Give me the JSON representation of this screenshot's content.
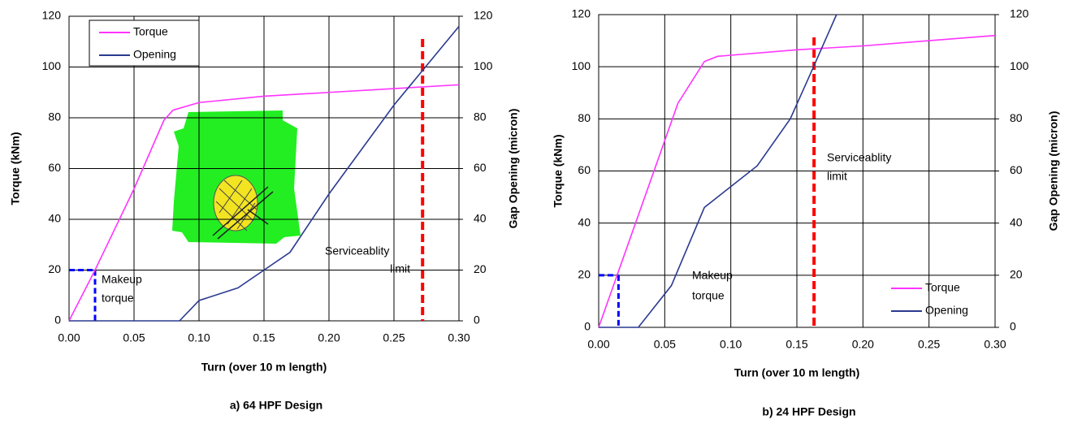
{
  "chart_data": [
    {
      "type": "line",
      "title": "a) 64 HPF Design",
      "xlabel": "Turn (over 10 m length)",
      "ylabel": "Torque (kNm)",
      "y2label": "Gap Opening (micron)",
      "xlim": [
        0,
        0.3
      ],
      "xticks": [
        {
          "value": 0,
          "label": "0.00"
        },
        {
          "value": 0.05,
          "label": "0.05"
        },
        {
          "value": 0.1,
          "label": "0.10"
        },
        {
          "value": 0.15,
          "label": "0.15"
        },
        {
          "value": 0.2,
          "label": "0.20"
        },
        {
          "value": 0.25,
          "label": "0.25"
        },
        {
          "value": 0.3,
          "label": "0.30"
        }
      ],
      "ylim": [
        0,
        120
      ],
      "yticks": [
        0,
        20,
        40,
        60,
        80,
        100,
        120
      ],
      "y2lim": [
        0,
        120
      ],
      "y2ticks": [
        0,
        20,
        40,
        60,
        80,
        100,
        120
      ],
      "grid": true,
      "legend": "upper left",
      "legend_frame": true,
      "series": [
        {
          "name": "Torque",
          "color": "#ff33ff",
          "x": [
            0,
            0.02,
            0.05,
            0.073,
            0.08,
            0.1,
            0.15,
            0.2,
            0.25,
            0.3
          ],
          "values": [
            0,
            20,
            52,
            79,
            83,
            86,
            88.5,
            90,
            91.5,
            93
          ]
        },
        {
          "name": "Opening",
          "color": "#2b3a8f",
          "axis": "y2",
          "x": [
            0,
            0.085,
            0.1,
            0.13,
            0.15,
            0.17,
            0.2,
            0.25,
            0.3
          ],
          "values": [
            0,
            0,
            8,
            13,
            20,
            27,
            50,
            85,
            116
          ]
        }
      ],
      "makeup_torque": {
        "label": [
          "Makeup",
          "torque"
        ],
        "x": 0.02,
        "y": 20,
        "color": "#0000ff"
      },
      "serviceability_limit": {
        "label": [
          "Serviceablity",
          "limit"
        ],
        "x": 0.272,
        "color": "#ff0000"
      }
    },
    {
      "type": "line",
      "title": "b) 24 HPF Design",
      "xlabel": "Turn (over 10 m length)",
      "ylabel": "Torque (kNm)",
      "y2label": "Gap Opening (micron)",
      "xlim": [
        0,
        0.3
      ],
      "xticks": [
        {
          "value": 0,
          "label": "0.00"
        },
        {
          "value": 0.05,
          "label": "0.05"
        },
        {
          "value": 0.1,
          "label": "0.10"
        },
        {
          "value": 0.15,
          "label": "0.15"
        },
        {
          "value": 0.2,
          "label": "0.20"
        },
        {
          "value": 0.25,
          "label": "0.25"
        },
        {
          "value": 0.3,
          "label": "0.30"
        }
      ],
      "ylim": [
        0,
        120
      ],
      "yticks": [
        0,
        20,
        40,
        60,
        80,
        100,
        120
      ],
      "y2lim": [
        0,
        120
      ],
      "y2ticks": [
        0,
        20,
        40,
        60,
        80,
        100,
        120
      ],
      "grid": true,
      "legend": "lower right",
      "legend_frame": false,
      "series": [
        {
          "name": "Torque",
          "color": "#ff33ff",
          "x": [
            0,
            0.06,
            0.08,
            0.09,
            0.15,
            0.2,
            0.25,
            0.3
          ],
          "values": [
            0,
            86,
            102,
            104,
            106.5,
            108,
            110,
            112
          ]
        },
        {
          "name": "Opening",
          "color": "#2b3a8f",
          "axis": "y2",
          "x": [
            0,
            0.03,
            0.055,
            0.08,
            0.1,
            0.12,
            0.145,
            0.16,
            0.18
          ],
          "values": [
            0,
            0,
            16,
            46,
            54,
            62,
            80,
            97,
            120
          ]
        }
      ],
      "makeup_torque": {
        "label": [
          "Makeup",
          "torque"
        ],
        "x": 0.015,
        "y": 20,
        "color": "#0000ff"
      },
      "serviceability_limit": {
        "label": [
          "Serviceablity",
          "limit"
        ],
        "x": 0.163,
        "color": "#ff0000"
      }
    }
  ]
}
